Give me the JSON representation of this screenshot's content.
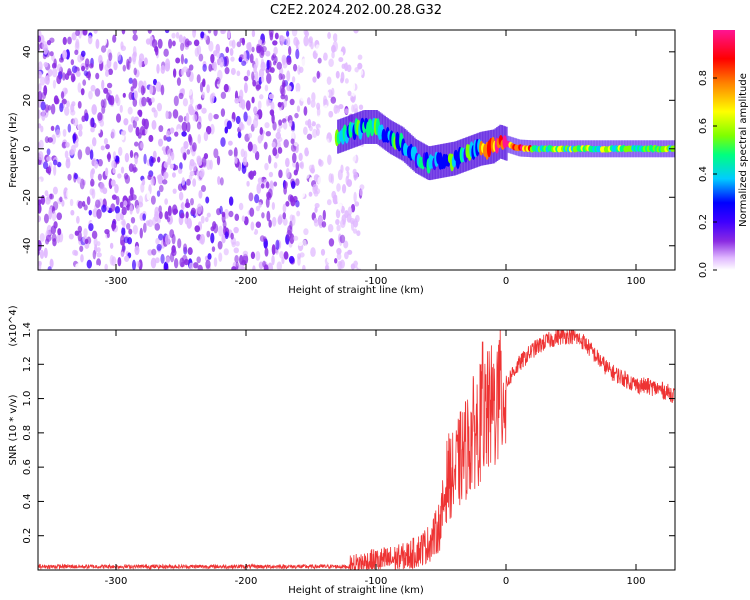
{
  "title": "C2E2.2024.202.00.28.G32",
  "chart_data": [
    {
      "type": "heatmap",
      "title": "C2E2.2024.202.00.28.G32",
      "xlabel": "Height of straight line (km)",
      "ylabel": "Frequency (Hz)",
      "xlim": [
        -360,
        130
      ],
      "ylim": [
        -50,
        49
      ],
      "xticks": [
        -300,
        -200,
        -100,
        0,
        100
      ],
      "yticks": [
        -40,
        -20,
        0,
        20,
        40
      ],
      "colorbar": {
        "label": "Normalized spectral amplitude",
        "range": [
          0.0,
          1.0
        ],
        "ticks": [
          0.0,
          0.2,
          0.4,
          0.6,
          0.8
        ],
        "colormap": [
          "#ffffff",
          "#e0b8ff",
          "#8a2be2",
          "#3f00ff",
          "#0000ff",
          "#00ccff",
          "#00ff7f",
          "#7fff00",
          "#ffff00",
          "#ff8000",
          "#ff0000",
          "#ff1493"
        ]
      },
      "ridge": {
        "x": [
          -130,
          -120,
          -110,
          -100,
          -90,
          -80,
          -70,
          -60,
          -50,
          -40,
          -30,
          -20,
          -10,
          -5,
          0,
          10,
          20,
          40,
          60,
          80,
          100,
          130
        ],
        "y": [
          5,
          7,
          9,
          9,
          5,
          2,
          -3,
          -6,
          -5,
          -4,
          -2,
          0,
          1,
          3,
          2,
          0.3,
          0,
          0,
          0,
          0,
          0,
          0
        ]
      },
      "noise_region_x": [
        -360,
        -130
      ]
    },
    {
      "type": "line",
      "xlabel": "Height of straight line (km)",
      "ylabel": "SNR (10 * v/v)",
      "yscale_label": "(x10^4)",
      "xlim": [
        -360,
        130
      ],
      "ylim": [
        0,
        1.4
      ],
      "xticks": [
        -300,
        -200,
        -100,
        0,
        100
      ],
      "yticks": [
        0.2,
        0.4,
        0.6,
        0.8,
        1.0,
        1.2,
        1.4
      ],
      "color": "#ee3333",
      "series": [
        {
          "name": "SNR",
          "x": [
            -360,
            -300,
            -200,
            -120,
            -110,
            -100,
            -90,
            -80,
            -70,
            -60,
            -55,
            -50,
            -45,
            -40,
            -35,
            -30,
            -25,
            -20,
            -15,
            -10,
            -5,
            0,
            5,
            10,
            20,
            30,
            40,
            50,
            60,
            70,
            80,
            90,
            100,
            110,
            120,
            130
          ],
          "values": [
            0.02,
            0.02,
            0.02,
            0.02,
            0.04,
            0.05,
            0.06,
            0.07,
            0.1,
            0.15,
            0.2,
            0.28,
            0.55,
            0.55,
            0.65,
            0.72,
            0.8,
            0.86,
            0.9,
            0.95,
            1.0,
            1.08,
            1.15,
            1.2,
            1.28,
            1.33,
            1.36,
            1.37,
            1.33,
            1.24,
            1.16,
            1.12,
            1.08,
            1.07,
            1.05,
            1.02
          ]
        }
      ]
    }
  ]
}
